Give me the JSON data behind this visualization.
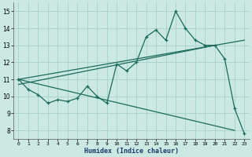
{
  "xlabel": "Humidex (Indice chaleur)",
  "bg_color": "#cbe8e3",
  "grid_color": "#aad4cc",
  "line_color": "#1a6b5a",
  "xlim": [
    -0.5,
    23.5
  ],
  "ylim": [
    7.5,
    15.5
  ],
  "xticks": [
    0,
    1,
    2,
    3,
    4,
    5,
    6,
    7,
    8,
    9,
    10,
    11,
    12,
    13,
    14,
    15,
    16,
    17,
    18,
    19,
    20,
    21,
    22,
    23
  ],
  "yticks": [
    8,
    9,
    10,
    11,
    12,
    13,
    14,
    15
  ],
  "main_x": [
    0,
    1,
    2,
    3,
    4,
    5,
    6,
    7,
    8,
    9,
    10,
    11,
    12,
    13,
    14,
    15,
    16,
    17,
    18,
    19,
    20,
    21,
    22,
    23
  ],
  "main_y": [
    11.0,
    10.4,
    10.1,
    9.6,
    9.8,
    9.7,
    9.9,
    10.6,
    10.0,
    9.6,
    11.9,
    11.5,
    12.0,
    13.5,
    13.9,
    13.3,
    15.0,
    14.0,
    13.3,
    13.0,
    13.0,
    12.2,
    9.3,
    7.8
  ],
  "line1_x": [
    0,
    23
  ],
  "line1_y": [
    11.0,
    13.3
  ],
  "line2_x": [
    0,
    22
  ],
  "line2_y": [
    11.0,
    8.0
  ],
  "line3_x": [
    0,
    20
  ],
  "line3_y": [
    10.7,
    13.0
  ]
}
